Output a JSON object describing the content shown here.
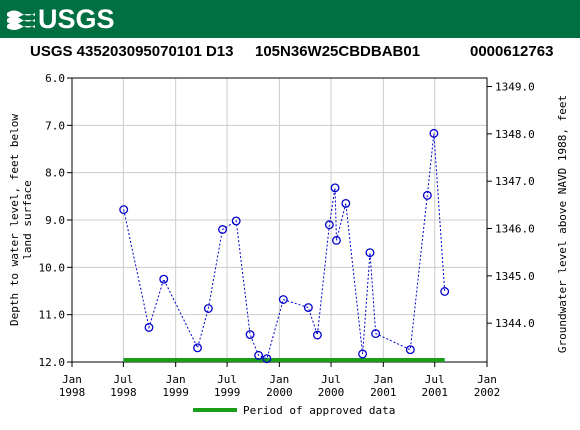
{
  "header": {
    "logo_text": "USGS",
    "site_id": "USGS 435203095070101 D13",
    "local_id": "105N36W25CBDBAB01",
    "nwis_id": "0000612763"
  },
  "colors": {
    "banner": "#006f41",
    "series": "#0000cc",
    "approved": "#1a9e1a",
    "grid": "#cccccc"
  },
  "chart_data": {
    "type": "scatter",
    "ylabel_left": "Depth to water level, feet below land surface",
    "ylabel_right": "Groundwater level above NAVD 1988, feet",
    "x_ticks": [
      {
        "line1": "Jan",
        "line2": "1998",
        "date": "1998-01-01"
      },
      {
        "line1": "Jul",
        "line2": "1998",
        "date": "1998-07-01"
      },
      {
        "line1": "Jan",
        "line2": "1999",
        "date": "1999-01-01"
      },
      {
        "line1": "Jul",
        "line2": "1999",
        "date": "1999-07-01"
      },
      {
        "line1": "Jan",
        "line2": "2000",
        "date": "2000-01-01"
      },
      {
        "line1": "Jul",
        "line2": "2000",
        "date": "2000-07-01"
      },
      {
        "line1": "Jan",
        "line2": "2001",
        "date": "2001-01-01"
      },
      {
        "line1": "Jul",
        "line2": "2001",
        "date": "2001-07-01"
      },
      {
        "line1": "Jan",
        "line2": "2002",
        "date": "2002-01-01"
      }
    ],
    "xlim": [
      "1998-01-01",
      "2002-01-01"
    ],
    "left_ticks": [
      "6.0",
      "7.0",
      "8.0",
      "9.0",
      "10.0",
      "11.0",
      "12.0"
    ],
    "left_ylim": [
      6.0,
      12.0
    ],
    "right_ticks": [
      "1349.0",
      "1348.0",
      "1347.0",
      "1346.0",
      "1345.0",
      "1344.0"
    ],
    "right_ylim": [
      1349.18,
      1343.18
    ],
    "grid": true,
    "series": [
      {
        "points": [
          {
            "date": "1998-07-02",
            "depth": 8.78
          },
          {
            "date": "1998-09-29",
            "depth": 11.27
          },
          {
            "date": "1998-11-20",
            "depth": 10.25
          },
          {
            "date": "1999-03-19",
            "depth": 11.7
          },
          {
            "date": "1999-04-26",
            "depth": 10.87
          },
          {
            "date": "1999-06-15",
            "depth": 9.2
          },
          {
            "date": "1999-08-02",
            "depth": 9.02
          },
          {
            "date": "1999-09-20",
            "depth": 11.42
          },
          {
            "date": "1999-10-20",
            "depth": 11.86
          },
          {
            "date": "1999-11-18",
            "depth": 11.93
          },
          {
            "date": "2000-01-15",
            "depth": 10.68
          },
          {
            "date": "2000-04-12",
            "depth": 10.85
          },
          {
            "date": "2000-05-14",
            "depth": 11.43
          },
          {
            "date": "2000-06-25",
            "depth": 9.1
          },
          {
            "date": "2000-07-15",
            "depth": 8.32
          },
          {
            "date": "2000-07-20",
            "depth": 9.43
          },
          {
            "date": "2000-08-22",
            "depth": 8.65
          },
          {
            "date": "2000-10-20",
            "depth": 11.83
          },
          {
            "date": "2000-11-15",
            "depth": 9.69
          },
          {
            "date": "2000-12-05",
            "depth": 11.4
          },
          {
            "date": "2001-04-06",
            "depth": 11.74
          },
          {
            "date": "2001-06-05",
            "depth": 8.48
          },
          {
            "date": "2001-06-28",
            "depth": 7.17
          },
          {
            "date": "2001-08-05",
            "depth": 10.51
          }
        ]
      }
    ],
    "approved_period": {
      "start": "1998-07-01",
      "end": "2001-08-05",
      "label": "Period of approved data"
    }
  }
}
